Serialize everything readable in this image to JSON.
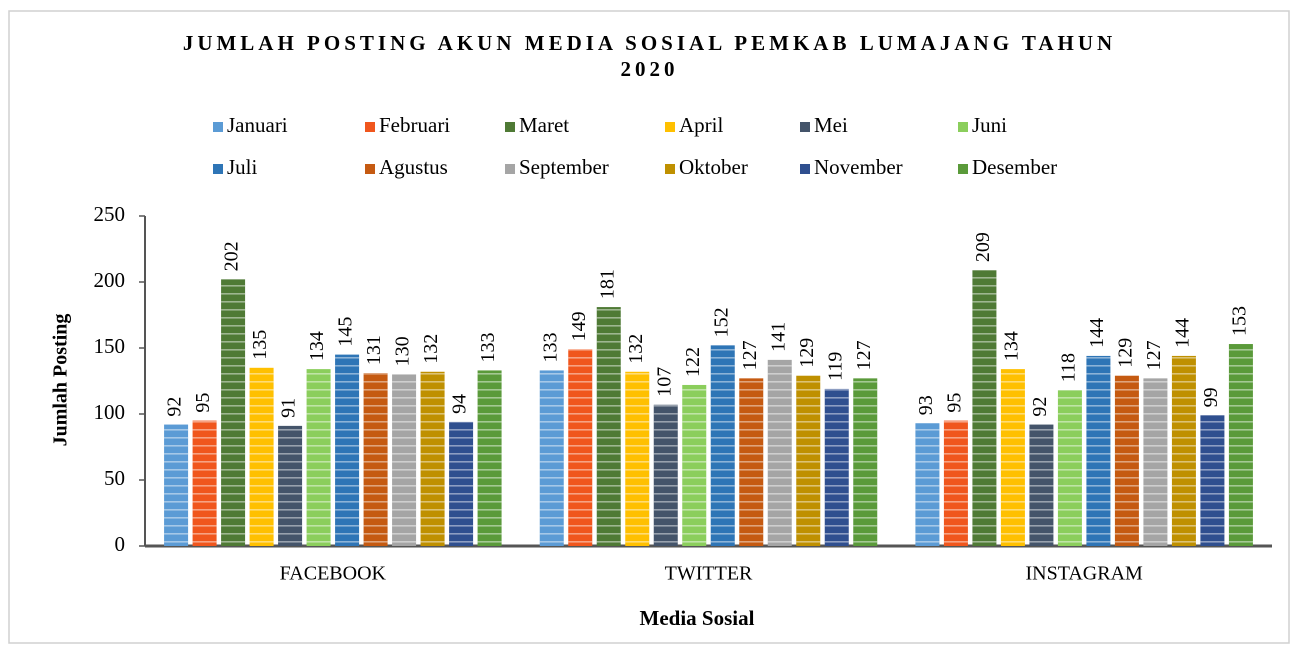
{
  "chart_data": {
    "type": "bar",
    "title": "JUMLAH POSTING AKUN MEDIA SOSIAL PEMKAB LUMAJANG TAHUN 2020",
    "x_label": "Media Sosial",
    "y_label": "Jumlah Posting",
    "categories": [
      "FACEBOOK",
      "TWITTER",
      "INSTAGRAM"
    ],
    "ylim": [
      0,
      250
    ],
    "yticks": [
      0,
      50,
      100,
      150,
      200,
      250
    ],
    "grid": false,
    "series": [
      {
        "name": "Januari",
        "color": "#5b9bd5",
        "values": [
          92,
          133,
          93
        ]
      },
      {
        "name": "Februari",
        "color": "#f0561d",
        "values": [
          95,
          149,
          95
        ]
      },
      {
        "name": "Maret",
        "color": "#4f7a35",
        "values": [
          202,
          181,
          209
        ]
      },
      {
        "name": "April",
        "color": "#ffc000",
        "values": [
          135,
          132,
          134
        ]
      },
      {
        "name": "Mei",
        "color": "#44546a",
        "values": [
          91,
          107,
          92
        ]
      },
      {
        "name": "Juni",
        "color": "#8bce5c",
        "values": [
          134,
          122,
          118
        ]
      },
      {
        "name": "Juli",
        "color": "#2e75b6",
        "values": [
          145,
          152,
          144
        ]
      },
      {
        "name": "Agustus",
        "color": "#c55a11",
        "values": [
          131,
          127,
          129
        ]
      },
      {
        "name": "September",
        "color": "#a5a5a5",
        "values": [
          130,
          141,
          127
        ]
      },
      {
        "name": "Oktober",
        "color": "#bf9000",
        "values": [
          132,
          129,
          144
        ]
      },
      {
        "name": "November",
        "color": "#2f4f8f",
        "values": [
          94,
          119,
          99
        ]
      },
      {
        "name": "Desember",
        "color": "#5a9a3a",
        "values": [
          133,
          127,
          153
        ]
      }
    ]
  }
}
